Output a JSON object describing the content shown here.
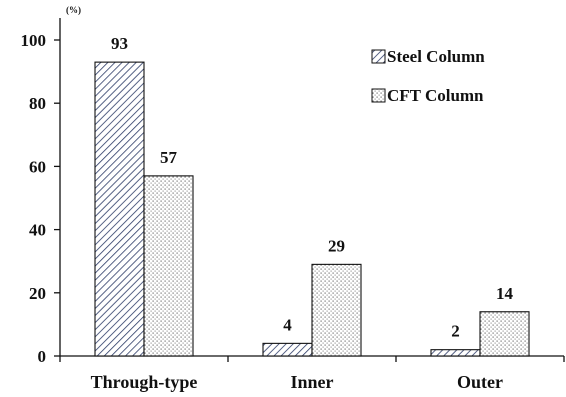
{
  "chart_data": {
    "type": "bar",
    "categories": [
      "Through-type",
      "Inner",
      "Outer"
    ],
    "series": [
      {
        "name": "Steel Column",
        "values": [
          93,
          4,
          2
        ],
        "pattern": "diagonal-hatch"
      },
      {
        "name": "CFT Column",
        "values": [
          57,
          29,
          14
        ],
        "pattern": "dotted"
      }
    ],
    "data_labels": [
      [
        "93",
        "4",
        "2"
      ],
      [
        "57",
        "29",
        "14"
      ]
    ],
    "y_unit": "(%)",
    "ylim": [
      0,
      100
    ],
    "y_ticks": [
      "0",
      "20",
      "40",
      "60",
      "80",
      "100"
    ],
    "grid": false,
    "legend_position": "top-right",
    "title": "",
    "xlabel": "",
    "ylabel": ""
  }
}
